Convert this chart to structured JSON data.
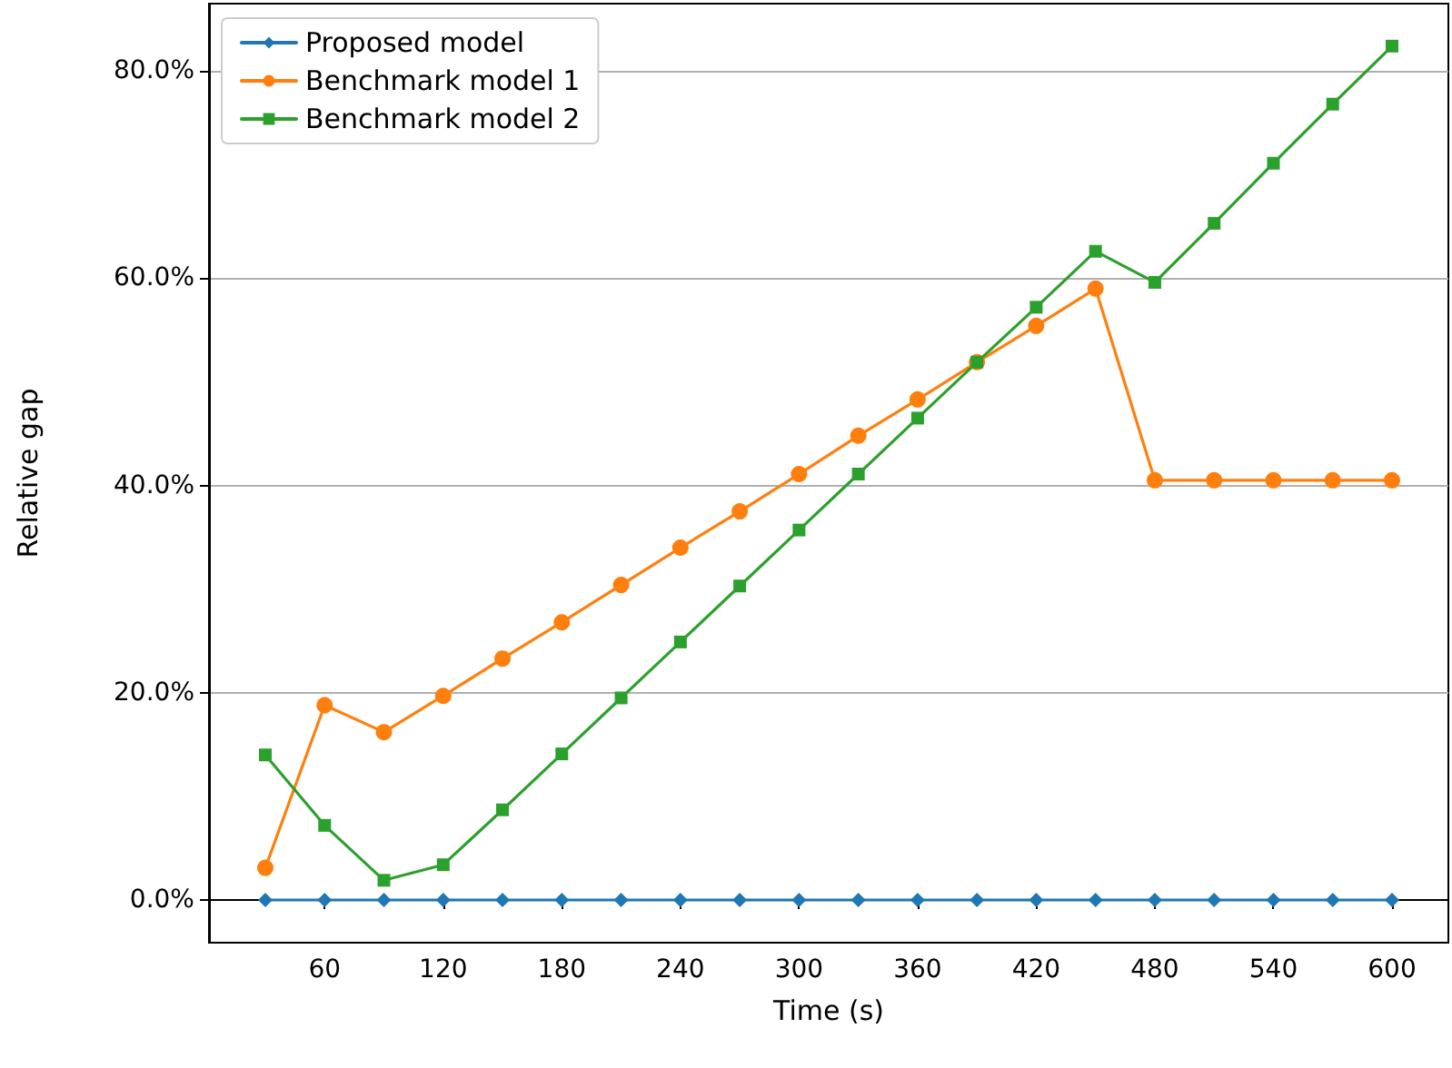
{
  "chart_data": {
    "type": "line",
    "xlabel": "Time (s)",
    "ylabel": "Relative gap",
    "x": [
      30,
      60,
      90,
      120,
      150,
      180,
      210,
      240,
      270,
      300,
      330,
      360,
      390,
      420,
      450,
      480,
      510,
      540,
      570,
      600
    ],
    "series": [
      {
        "name": "Proposed model",
        "color": "#1f77b4",
        "marker": "diamond",
        "values": [
          0,
          0,
          0,
          0,
          0,
          0,
          0,
          0,
          0,
          0,
          0,
          0,
          0,
          0,
          0,
          0,
          0,
          0,
          0,
          0
        ]
      },
      {
        "name": "Benchmark model 1",
        "color": "#ff7f0e",
        "marker": "circle",
        "values": [
          3.1,
          18.8,
          16.2,
          19.7,
          23.3,
          26.8,
          30.4,
          34.0,
          37.5,
          41.1,
          44.8,
          48.3,
          51.9,
          55.4,
          59.0,
          40.5,
          40.5,
          40.5,
          40.5,
          40.5
        ]
      },
      {
        "name": "Benchmark model 2",
        "color": "#2ca02c",
        "marker": "square",
        "values": [
          14.0,
          7.2,
          1.9,
          3.4,
          8.7,
          14.1,
          19.5,
          24.9,
          30.3,
          35.7,
          41.1,
          46.5,
          51.9,
          57.2,
          62.6,
          59.6,
          65.3,
          71.1,
          76.8,
          82.4
        ]
      }
    ],
    "xlim": [
      1.5,
      628.5
    ],
    "xticks": [
      60,
      120,
      180,
      240,
      300,
      360,
      420,
      480,
      540,
      600
    ],
    "ylim": [
      -4.12,
      86.5
    ],
    "yticks": [
      {
        "value": 0,
        "label": "0.0%"
      },
      {
        "value": 20,
        "label": "20.0%"
      },
      {
        "value": 40,
        "label": "40.0%"
      },
      {
        "value": 60,
        "label": "60.0%"
      },
      {
        "value": 80,
        "label": "80.0%"
      }
    ],
    "grid": "y",
    "legend": "top left",
    "line_style": "solid"
  }
}
